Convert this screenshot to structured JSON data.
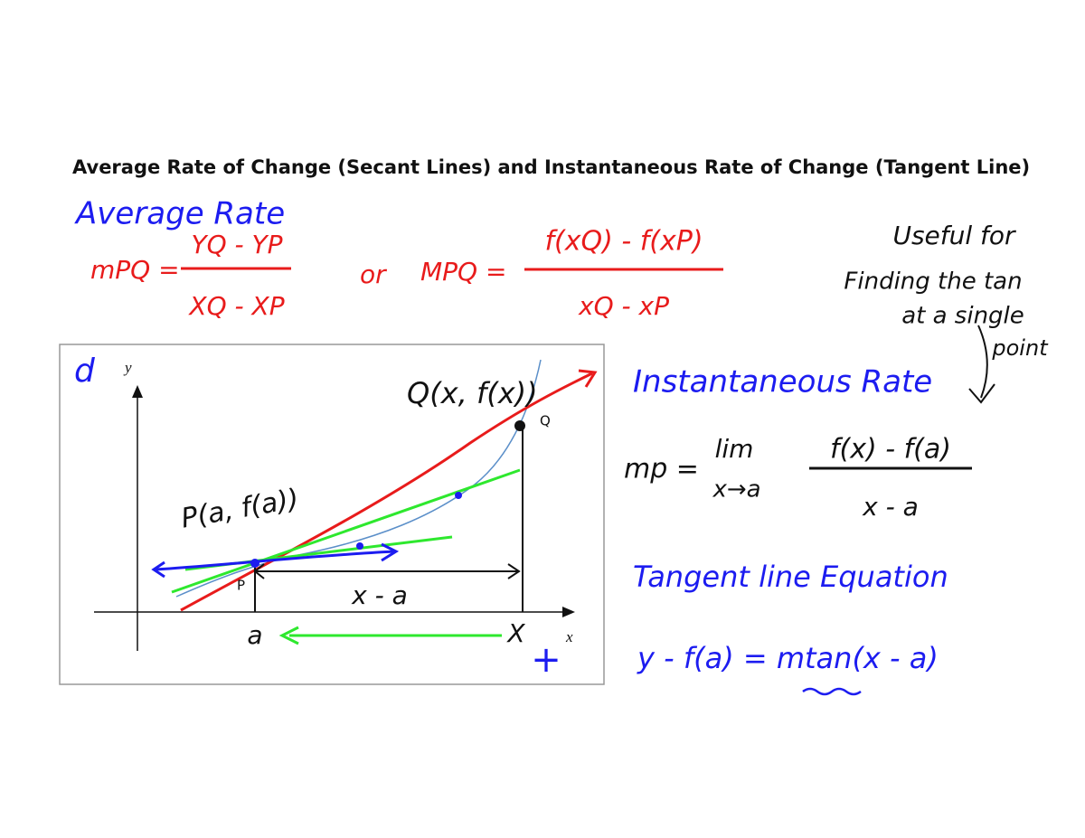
{
  "header": {
    "title": "Average Rate of Change (Secant Lines) and Instantaneous Rate of Change (Tangent Line)"
  },
  "average_rate": {
    "heading": "Average Rate",
    "formula1": {
      "lhs": "mPQ =",
      "numerator": "YQ - YP",
      "denominator": "XQ - XP"
    },
    "connector": "or",
    "formula2": {
      "lhs": "MPQ =",
      "numerator": "f(xQ) - f(xP)",
      "denominator": "xQ - xP"
    }
  },
  "note": {
    "lines": [
      "Useful for",
      "Finding the tan",
      "at a single",
      "point"
    ]
  },
  "graph": {
    "corner": "d",
    "y_axis": "y",
    "x_axis": "x",
    "q_point": "Q(x, f(x))",
    "q_label": "Q",
    "p_point": "P(a, f(a))",
    "p_label": "P",
    "interval": "x - a",
    "a_label": "a",
    "x_label": "X",
    "plus": "+"
  },
  "instantaneous": {
    "heading": "Instantaneous Rate",
    "lhs": "mp =",
    "limit": "lim",
    "limit_sub": "x→a",
    "numerator": "f(x) - f(a)",
    "denominator": "x - a"
  },
  "tangent": {
    "heading": "Tangent line Equation",
    "equation": "y - f(a) = mtan(x - a)"
  }
}
